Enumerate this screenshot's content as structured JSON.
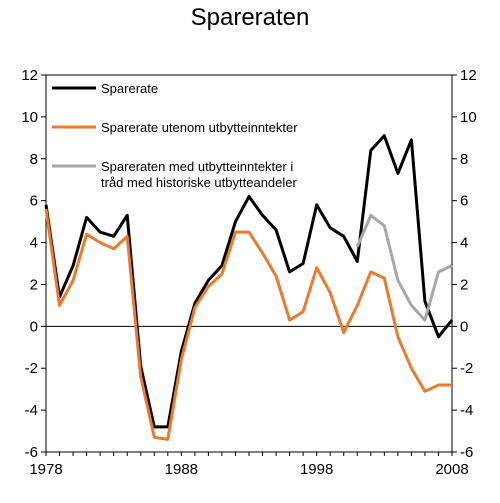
{
  "chart_data": {
    "type": "line",
    "title": "Spareraten",
    "xlabel": "",
    "ylabel": "",
    "xlim": [
      1978,
      2008
    ],
    "ylim": [
      -6,
      12
    ],
    "x_ticks": [
      1978,
      1988,
      1998,
      2008
    ],
    "y_ticks": [
      12,
      10,
      8,
      6,
      4,
      2,
      0,
      -2,
      -4,
      -6
    ],
    "grid": false,
    "legend_position": "top-left",
    "series": [
      {
        "name": "Sparerate",
        "color": "#000000",
        "x": [
          1978,
          1979,
          1980,
          1981,
          1982,
          1983,
          1984,
          1985,
          1986,
          1987,
          1988,
          1989,
          1990,
          1991,
          1992,
          1993,
          1994,
          1995,
          1996,
          1997,
          1998,
          1999,
          2000,
          2001,
          2002,
          2003,
          2004,
          2005,
          2006,
          2007,
          2008
        ],
        "y": [
          5.8,
          1.4,
          2.9,
          5.2,
          4.5,
          4.3,
          5.3,
          -1.9,
          -4.8,
          -4.8,
          -1.2,
          1.1,
          2.2,
          2.9,
          5.0,
          6.2,
          5.3,
          4.6,
          2.6,
          3.0,
          5.8,
          4.7,
          4.3,
          3.1,
          8.4,
          9.1,
          7.3,
          8.9,
          1.2,
          -0.5,
          0.3
        ]
      },
      {
        "name": "Sparerate utenom utbytteinntekter",
        "color": "#ec7a2c",
        "x": [
          1978,
          1979,
          1980,
          1981,
          1982,
          1983,
          1984,
          1985,
          1986,
          1987,
          1988,
          1989,
          1990,
          1991,
          1992,
          1993,
          1994,
          1995,
          1996,
          1997,
          1998,
          1999,
          2000,
          2001,
          2002,
          2003,
          2004,
          2005,
          2006,
          2007,
          2008
        ],
        "y": [
          5.6,
          1.0,
          2.2,
          4.4,
          4.0,
          3.7,
          4.3,
          -2.4,
          -5.3,
          -5.4,
          -1.6,
          0.9,
          1.9,
          2.5,
          4.5,
          4.5,
          3.5,
          2.4,
          0.3,
          0.7,
          2.8,
          1.6,
          -0.3,
          1.0,
          2.6,
          2.3,
          -0.5,
          -2.0,
          -3.1,
          -2.8,
          -2.8
        ]
      },
      {
        "name": "Spareraten med utbytteinntekter i tråd med historiske utbytteandeler",
        "color": "#a6a6a6",
        "x": [
          2001,
          2002,
          2003,
          2004,
          2005,
          2006,
          2007,
          2008
        ],
        "y": [
          3.8,
          5.3,
          4.8,
          2.2,
          1.0,
          0.3,
          2.6,
          2.9
        ]
      }
    ]
  }
}
